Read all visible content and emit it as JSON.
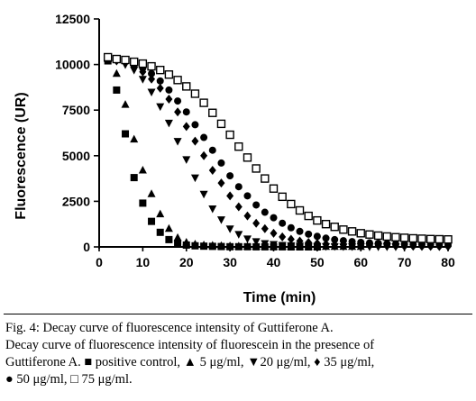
{
  "chart_data": {
    "type": "scatter",
    "xlabel": "Time (min)",
    "ylabel": "Fluorescence (UR)",
    "xlim": [
      0,
      80
    ],
    "ylim": [
      0,
      12500
    ],
    "x_ticks": [
      "0",
      "10",
      "20",
      "30",
      "40",
      "50",
      "60",
      "70",
      "80"
    ],
    "y_ticks": [
      "0",
      "2500",
      "5000",
      "7500",
      "10000",
      "12500"
    ],
    "grid": false,
    "legend": "none",
    "series": [
      {
        "name": "positive control",
        "marker": "square-filled",
        "color": "#000000",
        "x": [
          2,
          4,
          6,
          8,
          10,
          12,
          14,
          16,
          18,
          20,
          22,
          24,
          26,
          28,
          30,
          32,
          34,
          36,
          38,
          40,
          42,
          44,
          46,
          48,
          50
        ],
        "y": [
          10200,
          8600,
          6200,
          3800,
          2400,
          1400,
          800,
          400,
          200,
          100,
          60,
          40,
          30,
          20,
          10,
          10,
          10,
          5,
          5,
          5,
          5,
          0,
          0,
          0,
          0
        ]
      },
      {
        "name": "5 μg/ml",
        "marker": "triangle-up-filled",
        "color": "#000000",
        "x": [
          2,
          4,
          6,
          8,
          10,
          12,
          14,
          16,
          18,
          20,
          22,
          24,
          26,
          28,
          30,
          32,
          34,
          36,
          38,
          40,
          42,
          44,
          46,
          48,
          50,
          52,
          54,
          56,
          58,
          60
        ],
        "y": [
          10300,
          9500,
          7800,
          5900,
          4200,
          2900,
          1800,
          1000,
          500,
          250,
          150,
          100,
          80,
          60,
          50,
          40,
          30,
          30,
          20,
          20,
          20,
          10,
          10,
          10,
          10,
          10,
          10,
          10,
          10,
          10
        ]
      },
      {
        "name": "20 μg/ml",
        "marker": "triangle-down-filled",
        "color": "#000000",
        "x": [
          2,
          4,
          6,
          8,
          10,
          12,
          14,
          16,
          18,
          20,
          22,
          24,
          26,
          28,
          30,
          32,
          34,
          36,
          38,
          40,
          42,
          44,
          46,
          48,
          50,
          52,
          54,
          56,
          58,
          60,
          62,
          64,
          66,
          68
        ],
        "y": [
          10300,
          10200,
          10000,
          9700,
          9200,
          8500,
          7700,
          6800,
          5800,
          4800,
          3800,
          2900,
          2100,
          1500,
          1000,
          700,
          450,
          300,
          200,
          150,
          100,
          80,
          60,
          50,
          40,
          30,
          30,
          20,
          20,
          20,
          10,
          10,
          10,
          10
        ]
      },
      {
        "name": "35 μg/ml",
        "marker": "diamond-filled",
        "color": "#000000",
        "x": [
          2,
          4,
          6,
          8,
          10,
          12,
          14,
          16,
          18,
          20,
          22,
          24,
          26,
          28,
          30,
          32,
          34,
          36,
          38,
          40,
          42,
          44,
          46,
          48,
          50,
          52,
          54,
          56,
          58,
          60,
          62,
          64,
          66,
          68,
          70,
          72,
          74,
          76,
          78,
          80
        ],
        "y": [
          10300,
          10200,
          10100,
          9900,
          9600,
          9200,
          8700,
          8100,
          7400,
          6600,
          5800,
          5000,
          4200,
          3500,
          2800,
          2200,
          1700,
          1300,
          1000,
          750,
          550,
          420,
          320,
          250,
          200,
          160,
          130,
          110,
          90,
          80,
          70,
          60,
          50,
          45,
          40,
          35,
          30,
          30,
          25,
          25
        ]
      },
      {
        "name": "50 μg/ml",
        "marker": "circle-filled",
        "color": "#000000",
        "x": [
          2,
          4,
          6,
          8,
          10,
          12,
          14,
          16,
          18,
          20,
          22,
          24,
          26,
          28,
          30,
          32,
          34,
          36,
          38,
          40,
          42,
          44,
          46,
          48,
          50,
          52,
          54,
          56,
          58,
          60,
          62,
          64,
          66,
          68,
          70,
          72,
          74,
          76,
          78,
          80
        ],
        "y": [
          10300,
          10250,
          10150,
          10000,
          9800,
          9500,
          9100,
          8600,
          8000,
          7400,
          6700,
          6000,
          5300,
          4600,
          3900,
          3300,
          2800,
          2300,
          1900,
          1600,
          1300,
          1050,
          850,
          700,
          580,
          480,
          400,
          340,
          290,
          250,
          220,
          200,
          180,
          160,
          150,
          140,
          130,
          120,
          110,
          100
        ]
      },
      {
        "name": "75 μg/ml",
        "marker": "square-open",
        "color": "#000000",
        "x": [
          2,
          4,
          6,
          8,
          10,
          12,
          14,
          16,
          18,
          20,
          22,
          24,
          26,
          28,
          30,
          32,
          34,
          36,
          38,
          40,
          42,
          44,
          46,
          48,
          50,
          52,
          54,
          56,
          58,
          60,
          62,
          64,
          66,
          68,
          70,
          72,
          74,
          76,
          78,
          80
        ],
        "y": [
          10400,
          10300,
          10250,
          10150,
          10050,
          9900,
          9700,
          9450,
          9150,
          8800,
          8400,
          7900,
          7350,
          6750,
          6150,
          5500,
          4900,
          4300,
          3750,
          3200,
          2750,
          2350,
          2000,
          1700,
          1450,
          1250,
          1100,
          950,
          850,
          750,
          680,
          620,
          570,
          530,
          500,
          470,
          450,
          430,
          420,
          410
        ]
      }
    ]
  },
  "caption": {
    "line1": "Fig. 4: Decay curve of fluorescence intensity of Guttiferone A.",
    "line2": "Decay curve of fluorescence intensity of fluorescein in the presence of",
    "line3": "Guttiferone A. ■ positive control, ▲ 5 μg/ml, ▼20 μg/ml, ♦ 35 μg/ml,",
    "line4": "● 50 μg/ml, □ 75 μg/ml."
  }
}
